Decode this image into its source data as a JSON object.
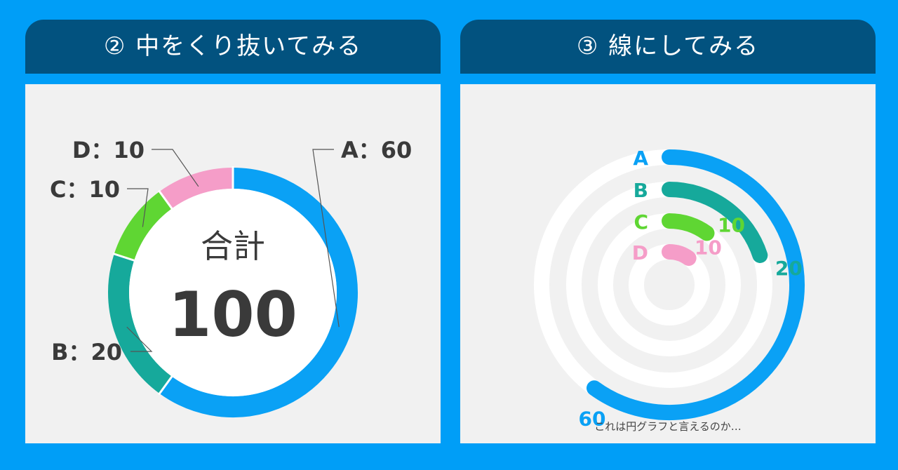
{
  "colors": {
    "background": "#009ef7",
    "header": "#02527f",
    "panel": "#f1f1f1",
    "A": "#0aa1f5",
    "B": "#16a99b",
    "C": "#5fd633",
    "D": "#f59dc8",
    "text": "#3a3a3a",
    "track": "#ffffff"
  },
  "left": {
    "title": "② 中をくり抜いてみる",
    "center_label": "合計",
    "center_value": "100",
    "labels": [
      "A：60",
      "B：20",
      "C：10",
      "D：10"
    ]
  },
  "right": {
    "title": "③ 線にしてみる",
    "caption": "これは円グラフと言えるのか…"
  },
  "chart_data": [
    {
      "type": "pie",
      "title": "② 中をくり抜いてみる",
      "categories": [
        "A",
        "B",
        "C",
        "D"
      ],
      "values": [
        60,
        20,
        10,
        10
      ],
      "total": 100
    },
    {
      "type": "pie",
      "title": "③ 線にしてみる",
      "categories": [
        "A",
        "B",
        "C",
        "D"
      ],
      "values": [
        60,
        20,
        10,
        10
      ],
      "value_labels": [
        "60",
        "20",
        "10",
        "10"
      ]
    }
  ]
}
